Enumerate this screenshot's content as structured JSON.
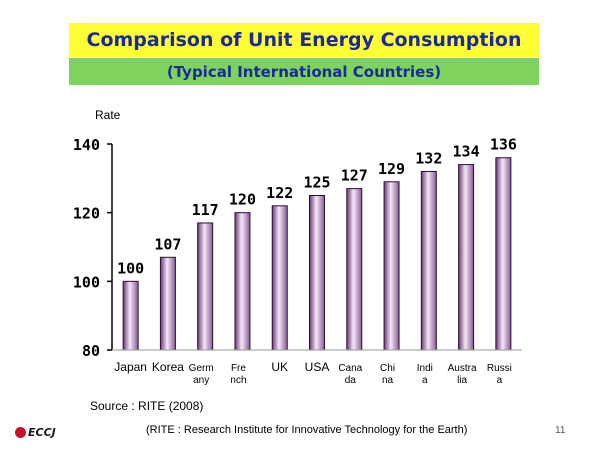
{
  "header": {
    "title": "Comparison of Unit Energy Consumption",
    "subtitle": "(Typical International Countries)"
  },
  "chart_data": {
    "type": "bar",
    "ylabel": "Rate",
    "ylim": [
      80,
      140
    ],
    "yticks": [
      80,
      100,
      120,
      140
    ],
    "categories": [
      [
        "Japan"
      ],
      [
        "Korea"
      ],
      [
        "Germ",
        "any"
      ],
      [
        "Fre",
        "nch"
      ],
      [
        "UK"
      ],
      [
        "USA"
      ],
      [
        "Cana",
        "da"
      ],
      [
        "Chi",
        "na"
      ],
      [
        "Indi",
        "a"
      ],
      [
        "Austra",
        "lia"
      ],
      [
        "Russi",
        "a"
      ]
    ],
    "values": [
      100,
      107,
      117,
      120,
      122,
      125,
      127,
      129,
      132,
      134,
      136
    ],
    "data_labels": true,
    "bar_color": "#d8b8e0"
  },
  "footer": {
    "source": "Source : RITE (2008)",
    "note": "(RITE : Research Institute for Innovative Technology for the Earth)",
    "logo_text": "ECCJ",
    "page_number": "11"
  }
}
